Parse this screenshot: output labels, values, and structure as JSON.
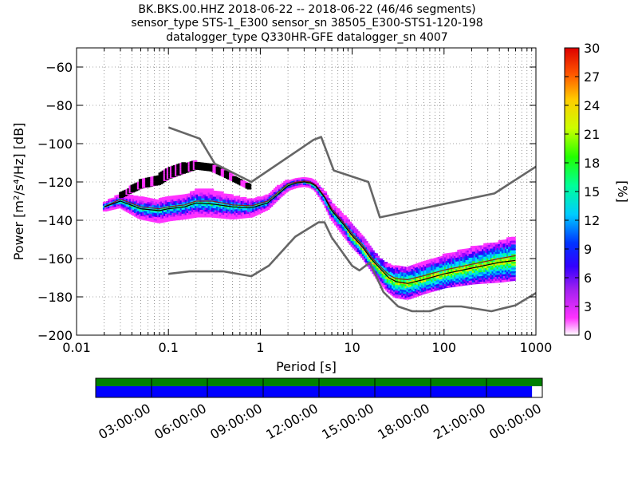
{
  "title_lines": [
    "BK.BKS.00.HHZ   2018-06-22 -- 2018-06-22  (46/46 segments)",
    "sensor_type STS-1_E300 sensor_sn 38505_E300-STS1-120-198",
    "datalogger_type Q330HR-GFE datalogger_sn 4007"
  ],
  "colors": {
    "noise_model": "#666666",
    "mode_line": "#000000",
    "mean_line": "#8b1a1a",
    "availability_top": "#008000",
    "availability_bottom": "#0000ff"
  },
  "chart_data": {
    "type": "heatmap",
    "xlabel": "Period [s]",
    "ylabel": "Power [m²/s⁴/Hz] [dB]",
    "x_scale": "log",
    "xlim": [
      0.01,
      1000
    ],
    "ylim": [
      -200,
      -50
    ],
    "x_ticks": [
      0.01,
      0.1,
      1,
      10,
      100,
      1000
    ],
    "x_tick_labels": [
      "0.01",
      "0.1",
      "1",
      "10",
      "100",
      "1000"
    ],
    "y_ticks": [
      -200,
      -180,
      -160,
      -140,
      -120,
      -100,
      -80,
      -60
    ],
    "grid": true,
    "colorbar": {
      "label": "[%]",
      "range": [
        0,
        30
      ],
      "ticks": [
        0,
        3,
        6,
        9,
        12,
        15,
        18,
        21,
        24,
        27,
        30
      ]
    },
    "noise_models": [
      {
        "name": "NHNM",
        "x": [
          0.1,
          0.22,
          0.32,
          0.8,
          3.8,
          4.6,
          6.3,
          15,
          20,
          354,
          1000
        ],
        "y": [
          -91.5,
          -97.4,
          -110.5,
          -120,
          -98,
          -96.5,
          -114,
          -120,
          -138.5,
          -126,
          -112
        ]
      },
      {
        "name": "NLNM",
        "x": [
          0.1,
          0.17,
          0.4,
          0.8,
          1.24,
          2.4,
          4.3,
          5,
          6,
          10,
          12,
          15.6,
          21.9,
          31.6,
          45,
          70,
          101,
          154,
          328,
          600,
          1000
        ],
        "y": [
          -168,
          -166.7,
          -166.7,
          -169.2,
          -163.7,
          -148.6,
          -141.1,
          -141.1,
          -149,
          -163.8,
          -166.2,
          -162.1,
          -177.5,
          -185,
          -187.5,
          -187.5,
          -185,
          -185,
          -187.5,
          -184.4,
          -178
        ]
      }
    ],
    "mode_line": {
      "x": [
        0.02,
        0.03,
        0.05,
        0.08,
        0.1,
        0.15,
        0.2,
        0.3,
        0.5,
        0.8,
        1.2,
        1.6,
        2,
        2.5,
        3,
        3.5,
        4,
        5,
        6,
        8,
        10,
        13,
        16,
        20,
        25,
        30,
        40,
        60,
        100,
        200,
        400,
        600
      ],
      "y": [
        -133,
        -130,
        -134,
        -135,
        -134,
        -133,
        -131,
        -131.5,
        -133,
        -133.5,
        -131,
        -126,
        -122,
        -120.5,
        -120,
        -120.5,
        -122,
        -128,
        -135,
        -142,
        -148,
        -154,
        -160,
        -165,
        -170,
        -172,
        -173,
        -171,
        -168,
        -165,
        -162,
        -161
      ]
    },
    "mean_line": {
      "x": [
        0.02,
        0.03,
        0.05,
        0.08,
        0.1,
        0.15,
        0.2,
        0.3,
        0.5,
        0.8,
        1.2,
        1.6,
        2,
        2.5,
        3,
        3.5,
        4,
        5,
        6,
        8,
        10,
        13,
        16,
        20,
        25,
        30,
        40,
        60,
        100,
        200,
        400,
        600
      ],
      "y": [
        -133,
        -129,
        -133,
        -134,
        -133,
        -132,
        -130,
        -130,
        -132,
        -132.5,
        -130,
        -125,
        -121,
        -120,
        -119.5,
        -120,
        -121.5,
        -127.5,
        -134,
        -141,
        -147,
        -153,
        -159,
        -164,
        -168.5,
        -170.5,
        -171,
        -169,
        -166,
        -163,
        -160,
        -158.5
      ]
    },
    "density_bands": [
      {
        "x": [
          0.02,
          0.03,
          0.05,
          0.08,
          0.1,
          0.15,
          0.2,
          0.3,
          0.5,
          0.8,
          1.2,
          1.6,
          2,
          2.5,
          3,
          3.5,
          4,
          5,
          6,
          8,
          10,
          13,
          16,
          20,
          25,
          30,
          40,
          60,
          100,
          200,
          400,
          600
        ],
        "low": [
          -135,
          -133,
          -139,
          -141,
          -140,
          -139,
          -138,
          -138,
          -139,
          -138,
          -134,
          -128,
          -124,
          -122.5,
          -122,
          -122.5,
          -124,
          -131,
          -139,
          -147,
          -153,
          -159,
          -165,
          -172,
          -177,
          -180,
          -181,
          -178,
          -175,
          -173,
          -172,
          -171
        ],
        "high": [
          -131,
          -126,
          -128,
          -129,
          -128,
          -127,
          -124,
          -124,
          -127,
          -129,
          -127,
          -122,
          -119,
          -118.5,
          -118,
          -118.5,
          -120,
          -125,
          -131,
          -137,
          -143,
          -149,
          -155,
          -160,
          -163,
          -164,
          -164,
          -162,
          -158,
          -154,
          -151,
          -148
        ]
      },
      {
        "x": [
          0.03,
          0.05,
          0.08,
          0.1,
          0.15,
          0.2,
          0.3,
          0.5,
          0.8
        ],
        "low": [
          -128,
          -123,
          -121,
          -118,
          -115,
          -113,
          -114,
          -119,
          -124
        ],
        "high": [
          -126,
          -119,
          -116,
          -113,
          -110,
          -109,
          -111,
          -116,
          -122
        ]
      }
    ],
    "availability": {
      "time_labels": [
        "03:00:00",
        "06:00:00",
        "09:00:00",
        "12:00:00",
        "15:00:00",
        "18:00:00",
        "21:00:00",
        "00:00:00"
      ],
      "coverage_fraction_top": 1.0,
      "coverage_fraction_bottom": 0.977
    }
  }
}
